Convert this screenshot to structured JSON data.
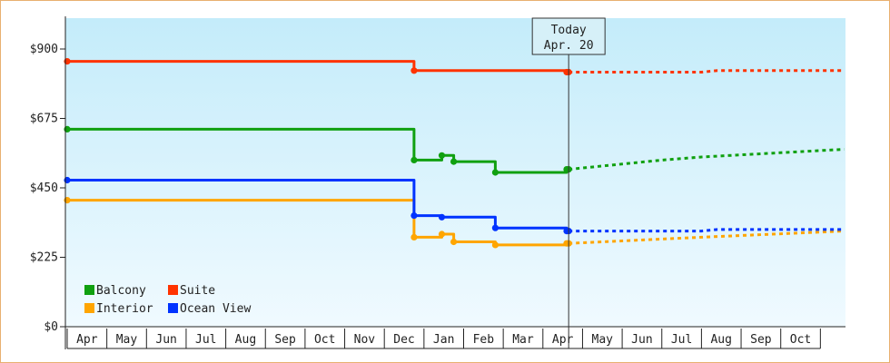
{
  "chart_data": {
    "type": "line",
    "step": true,
    "title": "",
    "xlabel": "",
    "ylabel": "",
    "ylim": [
      0,
      1000
    ],
    "yticks": [
      "$0",
      "$225",
      "$450",
      "$675",
      "$900"
    ],
    "ytick_values": [
      0,
      225,
      450,
      675,
      900
    ],
    "xticks": [
      "Apr",
      "May",
      "Jun",
      "Jul",
      "Aug",
      "Sep",
      "Oct",
      "Nov",
      "Dec",
      "Jan",
      "Feb",
      "Mar",
      "Apr",
      "May",
      "Jun",
      "Jul",
      "Aug",
      "Sep",
      "Oct"
    ],
    "today": {
      "line1": "Today",
      "line2": "Apr. 20",
      "month_index": 12.65
    },
    "legend": {
      "placement": "bottom-left"
    },
    "series": [
      {
        "name": "Balcony",
        "color": "#10a010",
        "history": [
          [
            0,
            640
          ],
          [
            8.75,
            640
          ],
          [
            8.75,
            540
          ],
          [
            9.45,
            540
          ],
          [
            9.45,
            555
          ],
          [
            9.75,
            555
          ],
          [
            9.75,
            535
          ],
          [
            10.8,
            535
          ],
          [
            10.8,
            500
          ],
          [
            12.6,
            500
          ],
          [
            12.6,
            510
          ],
          [
            12.65,
            510
          ]
        ],
        "forecast": [
          [
            12.65,
            510
          ],
          [
            15,
            540
          ],
          [
            16,
            550
          ],
          [
            19.6,
            575
          ]
        ]
      },
      {
        "name": "Suite",
        "color": "#ff3300",
        "history": [
          [
            0,
            860
          ],
          [
            8.75,
            860
          ],
          [
            8.75,
            830
          ],
          [
            12.6,
            830
          ],
          [
            12.6,
            825
          ],
          [
            12.65,
            825
          ]
        ],
        "forecast": [
          [
            12.65,
            825
          ],
          [
            16,
            825
          ],
          [
            16.4,
            830
          ],
          [
            19.6,
            830
          ]
        ]
      },
      {
        "name": "Interior",
        "color": "#ffa500",
        "history": [
          [
            0,
            410
          ],
          [
            8.75,
            410
          ],
          [
            8.75,
            290
          ],
          [
            9.45,
            290
          ],
          [
            9.45,
            300
          ],
          [
            9.75,
            300
          ],
          [
            9.75,
            275
          ],
          [
            10.8,
            275
          ],
          [
            10.8,
            265
          ],
          [
            12.6,
            265
          ],
          [
            12.6,
            270
          ],
          [
            12.65,
            270
          ]
        ],
        "forecast": [
          [
            12.65,
            270
          ],
          [
            16,
            290
          ],
          [
            19.6,
            310
          ]
        ]
      },
      {
        "name": "Ocean View",
        "color": "#0033ff",
        "history": [
          [
            0,
            475
          ],
          [
            8.75,
            475
          ],
          [
            8.75,
            360
          ],
          [
            9.45,
            360
          ],
          [
            9.45,
            355
          ],
          [
            10.8,
            355
          ],
          [
            10.8,
            320
          ],
          [
            12.6,
            320
          ],
          [
            12.6,
            310
          ],
          [
            12.65,
            310
          ]
        ],
        "forecast": [
          [
            12.65,
            310
          ],
          [
            16,
            310
          ],
          [
            16.4,
            315
          ],
          [
            19.6,
            315
          ]
        ]
      }
    ]
  }
}
